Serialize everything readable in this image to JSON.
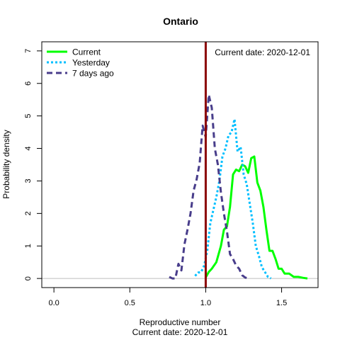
{
  "chart_data": {
    "type": "line",
    "title": "Ontario",
    "xlabel": "Reproductive number",
    "xlabel2": "Current date:  2020-12-01",
    "ylabel": "Probability density",
    "annotation": "Current date:  2020-12-01",
    "xlim": [
      -0.08,
      1.74
    ],
    "ylim": [
      -0.28,
      7.28
    ],
    "x_ticks": [
      "0.0",
      "0.5",
      "1.0",
      "1.5"
    ],
    "x_tick_values": [
      0.0,
      0.5,
      1.0,
      1.5
    ],
    "y_ticks": [
      "0",
      "1",
      "2",
      "3",
      "4",
      "5",
      "6",
      "7"
    ],
    "y_tick_values": [
      0,
      1,
      2,
      3,
      4,
      5,
      6,
      7
    ],
    "reference_line": {
      "x": 1.0,
      "color": "#8b0000"
    },
    "baseline": {
      "y": 0,
      "color": "#bebebe"
    },
    "legend_position": "top-left",
    "series": [
      {
        "name": "Current",
        "color": "#00ff00",
        "dash": "solid",
        "x": [
          1.0,
          1.02,
          1.04,
          1.07,
          1.1,
          1.12,
          1.14,
          1.16,
          1.18,
          1.2,
          1.22,
          1.24,
          1.26,
          1.28,
          1.3,
          1.32,
          1.34,
          1.36,
          1.38,
          1.4,
          1.42,
          1.44,
          1.46,
          1.48,
          1.5,
          1.52,
          1.55,
          1.58,
          1.61,
          1.64,
          1.67
        ],
        "y": [
          0.03,
          0.2,
          0.3,
          0.5,
          1.0,
          1.5,
          1.6,
          2.2,
          3.2,
          3.35,
          3.3,
          3.5,
          3.45,
          3.25,
          3.7,
          3.75,
          2.95,
          2.7,
          2.2,
          1.5,
          0.85,
          0.85,
          0.6,
          0.3,
          0.3,
          0.15,
          0.15,
          0.05,
          0.05,
          0.02,
          0.0
        ]
      },
      {
        "name": "Yesterday",
        "color": "#00bfff",
        "dash": "dotted",
        "x": [
          0.93,
          0.95,
          0.97,
          0.99,
          1.01,
          1.03,
          1.05,
          1.07,
          1.09,
          1.11,
          1.13,
          1.15,
          1.17,
          1.19,
          1.21,
          1.23,
          1.25,
          1.27,
          1.29,
          1.31,
          1.33,
          1.35,
          1.37,
          1.39,
          1.41,
          1.43
        ],
        "y": [
          0.08,
          0.18,
          0.2,
          0.4,
          0.85,
          1.7,
          2.1,
          2.5,
          3.0,
          3.75,
          4.0,
          4.4,
          4.5,
          4.9,
          3.9,
          4.05,
          3.2,
          2.9,
          2.3,
          1.7,
          1.0,
          0.7,
          0.35,
          0.2,
          0.05,
          0.0
        ]
      },
      {
        "name": "7 days ago",
        "color": "#483d8b",
        "dash": "dashed",
        "x": [
          0.76,
          0.78,
          0.8,
          0.82,
          0.84,
          0.86,
          0.88,
          0.9,
          0.92,
          0.94,
          0.96,
          0.98,
          1.0,
          1.02,
          1.04,
          1.06,
          1.08,
          1.1,
          1.12,
          1.14,
          1.16,
          1.18,
          1.2,
          1.22,
          1.24,
          1.26,
          1.28
        ],
        "y": [
          0.05,
          0.0,
          0.0,
          0.45,
          0.25,
          1.05,
          1.5,
          2.0,
          2.7,
          3.05,
          3.55,
          4.7,
          4.35,
          5.65,
          5.25,
          4.0,
          3.5,
          2.65,
          2.0,
          1.45,
          0.75,
          0.6,
          0.4,
          0.3,
          0.1,
          0.03,
          0.0
        ]
      }
    ]
  }
}
